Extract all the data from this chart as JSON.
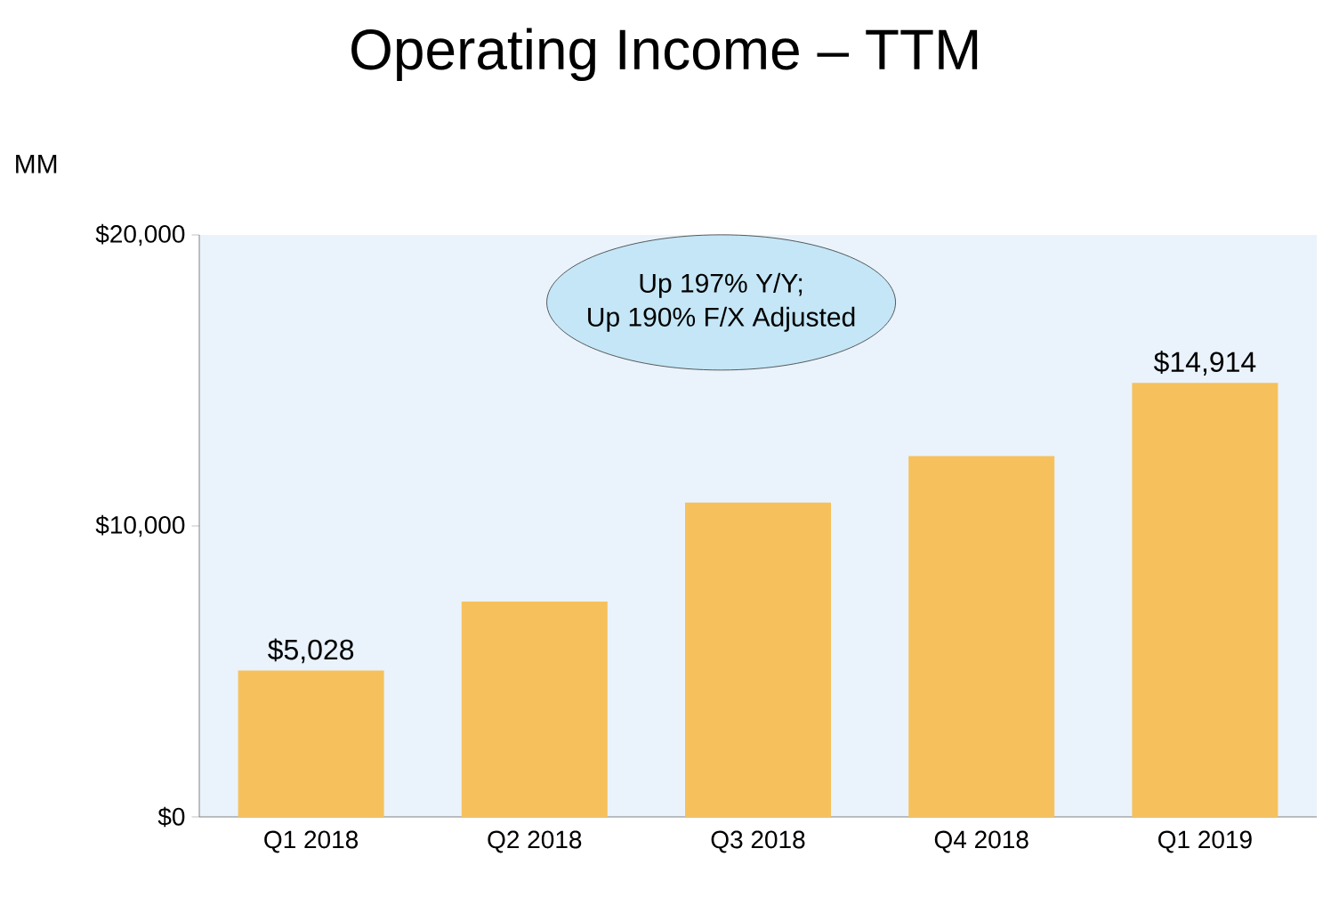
{
  "chart_data": {
    "type": "bar",
    "title": "Operating Income – TTM",
    "ylabel": "MM",
    "categories": [
      "Q1 2018",
      "Q2 2018",
      "Q3 2018",
      "Q4 2018",
      "Q1 2019"
    ],
    "values": [
      5028,
      7400,
      10800,
      12400,
      14914
    ],
    "color": "#f6c15c",
    "value_labels": [
      "$5,028",
      null,
      null,
      null,
      "$14,914"
    ],
    "ylim": [
      0,
      20000
    ],
    "yticks": [
      {
        "value": 0,
        "label": "$0"
      },
      {
        "value": 10000,
        "label": "$10,000"
      },
      {
        "value": 20000,
        "label": "$20,000"
      }
    ],
    "annotations": [
      "Up 197% Y/Y;\nUp 190% F/X Adjusted"
    ],
    "grid": false
  }
}
